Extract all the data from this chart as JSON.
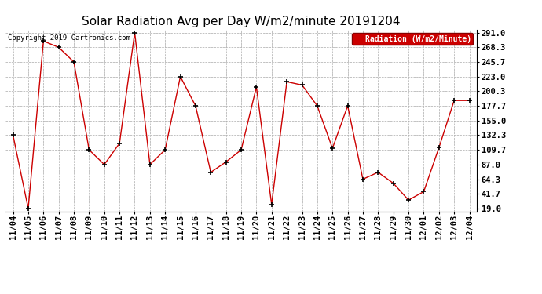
{
  "title": "Solar Radiation Avg per Day W/m2/minute 20191204",
  "copyright": "Copyright 2019 Cartronics.com",
  "legend_label": "Radiation (W/m2/Minute)",
  "x_labels": [
    "11/04",
    "11/05",
    "11/06",
    "11/07",
    "11/08",
    "11/09",
    "11/10",
    "11/11",
    "11/12",
    "11/13",
    "11/14",
    "11/15",
    "11/16",
    "11/17",
    "11/18",
    "11/19",
    "11/20",
    "11/21",
    "11/22",
    "11/23",
    "11/24",
    "11/25",
    "11/26",
    "11/27",
    "11/28",
    "11/29",
    "11/30",
    "12/01",
    "12/02",
    "12/03",
    "12/04"
  ],
  "y_values": [
    132.3,
    19.0,
    278.0,
    268.3,
    245.7,
    109.7,
    87.0,
    119.7,
    291.0,
    87.0,
    109.7,
    223.0,
    177.7,
    75.0,
    91.0,
    109.7,
    207.0,
    25.0,
    215.0,
    210.0,
    177.7,
    112.0,
    177.7,
    64.3,
    75.0,
    58.0,
    32.0,
    45.0,
    113.0,
    186.0,
    186.0
  ],
  "line_color": "#cc0000",
  "marker_color": "#000000",
  "background_color": "#ffffff",
  "grid_color": "#aaaaaa",
  "ylim_min": 19.0,
  "ylim_max": 291.0,
  "yticks": [
    19.0,
    41.7,
    64.3,
    87.0,
    109.7,
    132.3,
    155.0,
    177.7,
    200.3,
    223.0,
    245.7,
    268.3,
    291.0
  ],
  "legend_bg": "#cc0000",
  "legend_text_color": "#ffffff",
  "title_fontsize": 11,
  "tick_fontsize": 7.5,
  "copyright_fontsize": 6.5
}
